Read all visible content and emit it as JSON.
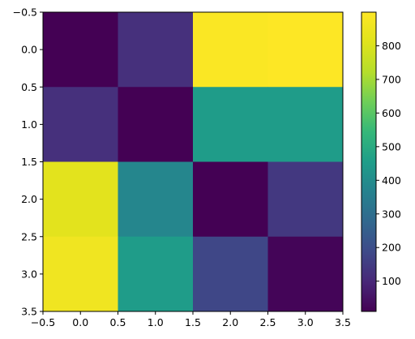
{
  "chart_data": {
    "type": "heatmap",
    "title": "",
    "xlabel": "",
    "ylabel": "",
    "xlim": [
      -0.5,
      3.5
    ],
    "ylim": [
      3.5,
      -0.5
    ],
    "x_tick_labels": [
      "−0.5",
      "0.0",
      "0.5",
      "1.0",
      "1.5",
      "2.0",
      "2.5",
      "3.0",
      "3.5"
    ],
    "y_tick_labels": [
      "−0.5",
      "0.0",
      "0.5",
      "1.0",
      "1.5",
      "2.0",
      "2.5",
      "3.0",
      "3.5"
    ],
    "matrix": [
      [
        10,
        120,
        890,
        900
      ],
      [
        120,
        10,
        450,
        450
      ],
      [
        820,
        380,
        10,
        140
      ],
      [
        860,
        450,
        180,
        20
      ]
    ],
    "colormap": "viridis",
    "colorbar": {
      "min": 10,
      "max": 900,
      "tick_values": [
        100,
        200,
        300,
        400,
        500,
        600,
        700,
        800
      ],
      "tick_labels": [
        "100",
        "200",
        "300",
        "400",
        "500",
        "600",
        "700",
        "800"
      ]
    },
    "grid": false
  }
}
